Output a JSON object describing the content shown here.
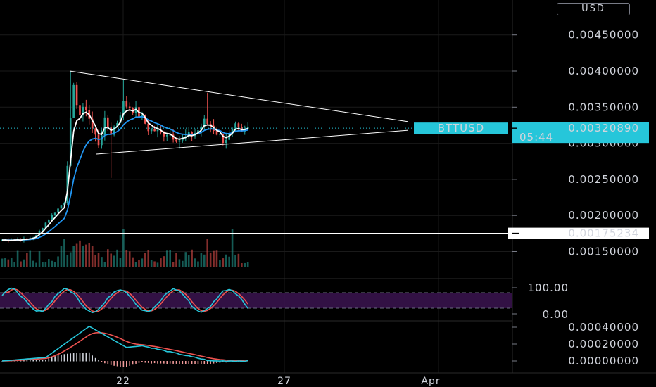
{
  "currency": "USD",
  "colors": {
    "background": "#000000",
    "grid": "#1a1a1a",
    "up": "#26a69a",
    "down": "#ef5350",
    "ema_fast": "#ffffff",
    "ema_slow": "#2196f3",
    "trendline": "#ffffff",
    "stoch_k": "#26c6da",
    "stoch_d": "#ef5350",
    "stoch_band": "#3b1450",
    "macd": "#26c6da",
    "signal": "#ef5350",
    "price_badge": "#26c6da"
  },
  "price_axis": {
    "ticks": [
      "0.00450000",
      "0.00400000",
      "0.00350000",
      "0.00300000",
      "0.00250000",
      "0.00200000",
      "0.00150000"
    ],
    "tick_values": [
      0.0045,
      0.004,
      0.0035,
      0.003,
      0.0025,
      0.002,
      0.0015
    ]
  },
  "time_axis": {
    "labels": [
      "22",
      "27",
      "Apr"
    ]
  },
  "last_price": {
    "symbol": "BTTUSD",
    "value": "0.00320890",
    "countdown": "05:44"
  },
  "horizontal_line": {
    "value": 0.00175234,
    "label": "0.00175234"
  },
  "stochastic": {
    "ticks": [
      "100.00",
      "0.00"
    ],
    "upper_band": 80,
    "lower_band": 20
  },
  "macd_panel": {
    "ticks": [
      "0.00040000",
      "0.00020000",
      "0.00000000"
    ],
    "tick_values": [
      0.0004,
      0.0002,
      0.0
    ]
  },
  "chart_data": {
    "type": "candlestick",
    "symbol": "BTTUSD",
    "price_key_points": [
      {
        "label": "start",
        "value": 0.00166
      },
      {
        "label": "peak",
        "value": 0.004
      },
      {
        "label": "second_high",
        "value": 0.00388
      },
      {
        "label": "low_spike",
        "value": 0.00252
      },
      {
        "label": "last",
        "value": 0.0032089
      }
    ],
    "triangle_resistance": [
      0.004,
      0.0033
    ],
    "triangle_support": [
      0.00285,
      0.00318
    ],
    "ylim": [
      0.0012,
      0.0049
    ]
  }
}
